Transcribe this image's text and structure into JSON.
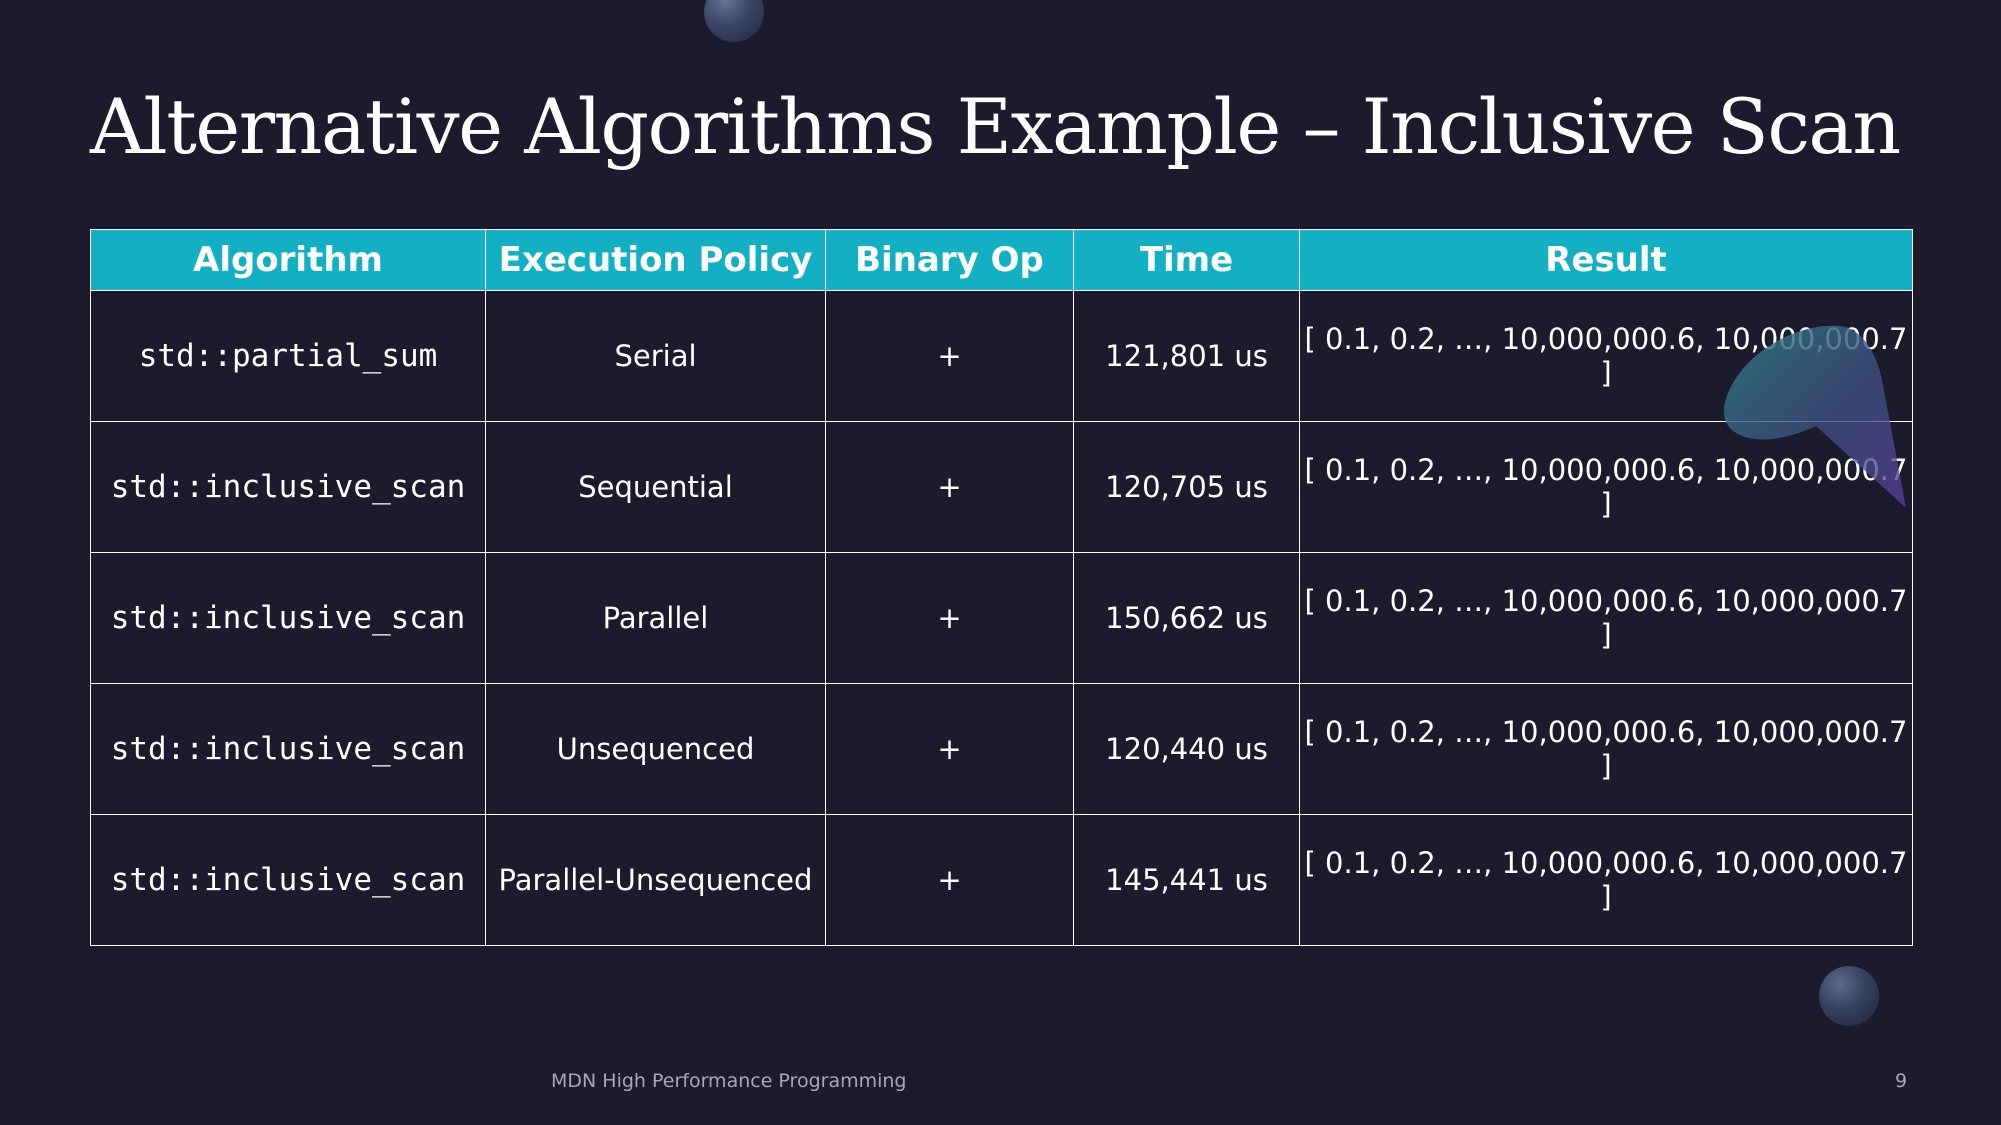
{
  "slide": {
    "title": "Alternative Algorithms Example – Inclusive Scan",
    "footer": "MDN High Performance Programming",
    "page_number": "9"
  },
  "table": {
    "headers": [
      "Algorithm",
      "Execution Policy",
      "Binary Op",
      "Time",
      "Result"
    ],
    "rows": [
      [
        "std::partial_sum",
        "Serial",
        "+",
        "121,801 us",
        "[ 0.1, 0.2, …, 10,000,000.6, 10,000,000.7 ]"
      ],
      [
        "std::inclusive_scan",
        "Sequential",
        "+",
        "120,705 us",
        "[ 0.1, 0.2, …, 10,000,000.6, 10,000,000.7 ]"
      ],
      [
        "std::inclusive_scan",
        "Parallel",
        "+",
        "150,662 us",
        "[ 0.1, 0.2, …, 10,000,000.6, 10,000,000.7 ]"
      ],
      [
        "std::inclusive_scan",
        "Unsequenced",
        "+",
        "120,440 us",
        "[ 0.1, 0.2, …, 10,000,000.6, 10,000,000.7 ]"
      ],
      [
        "std::inclusive_scan",
        "Parallel-Unsequenced",
        "+",
        "145,441 us",
        "[ 0.1, 0.2, …, 10,000,000.6, 10,000,000.7 ]"
      ]
    ]
  },
  "colors": {
    "background": "#1c1b2e",
    "header_fill": "#13b0c4",
    "text": "#ffffff"
  }
}
